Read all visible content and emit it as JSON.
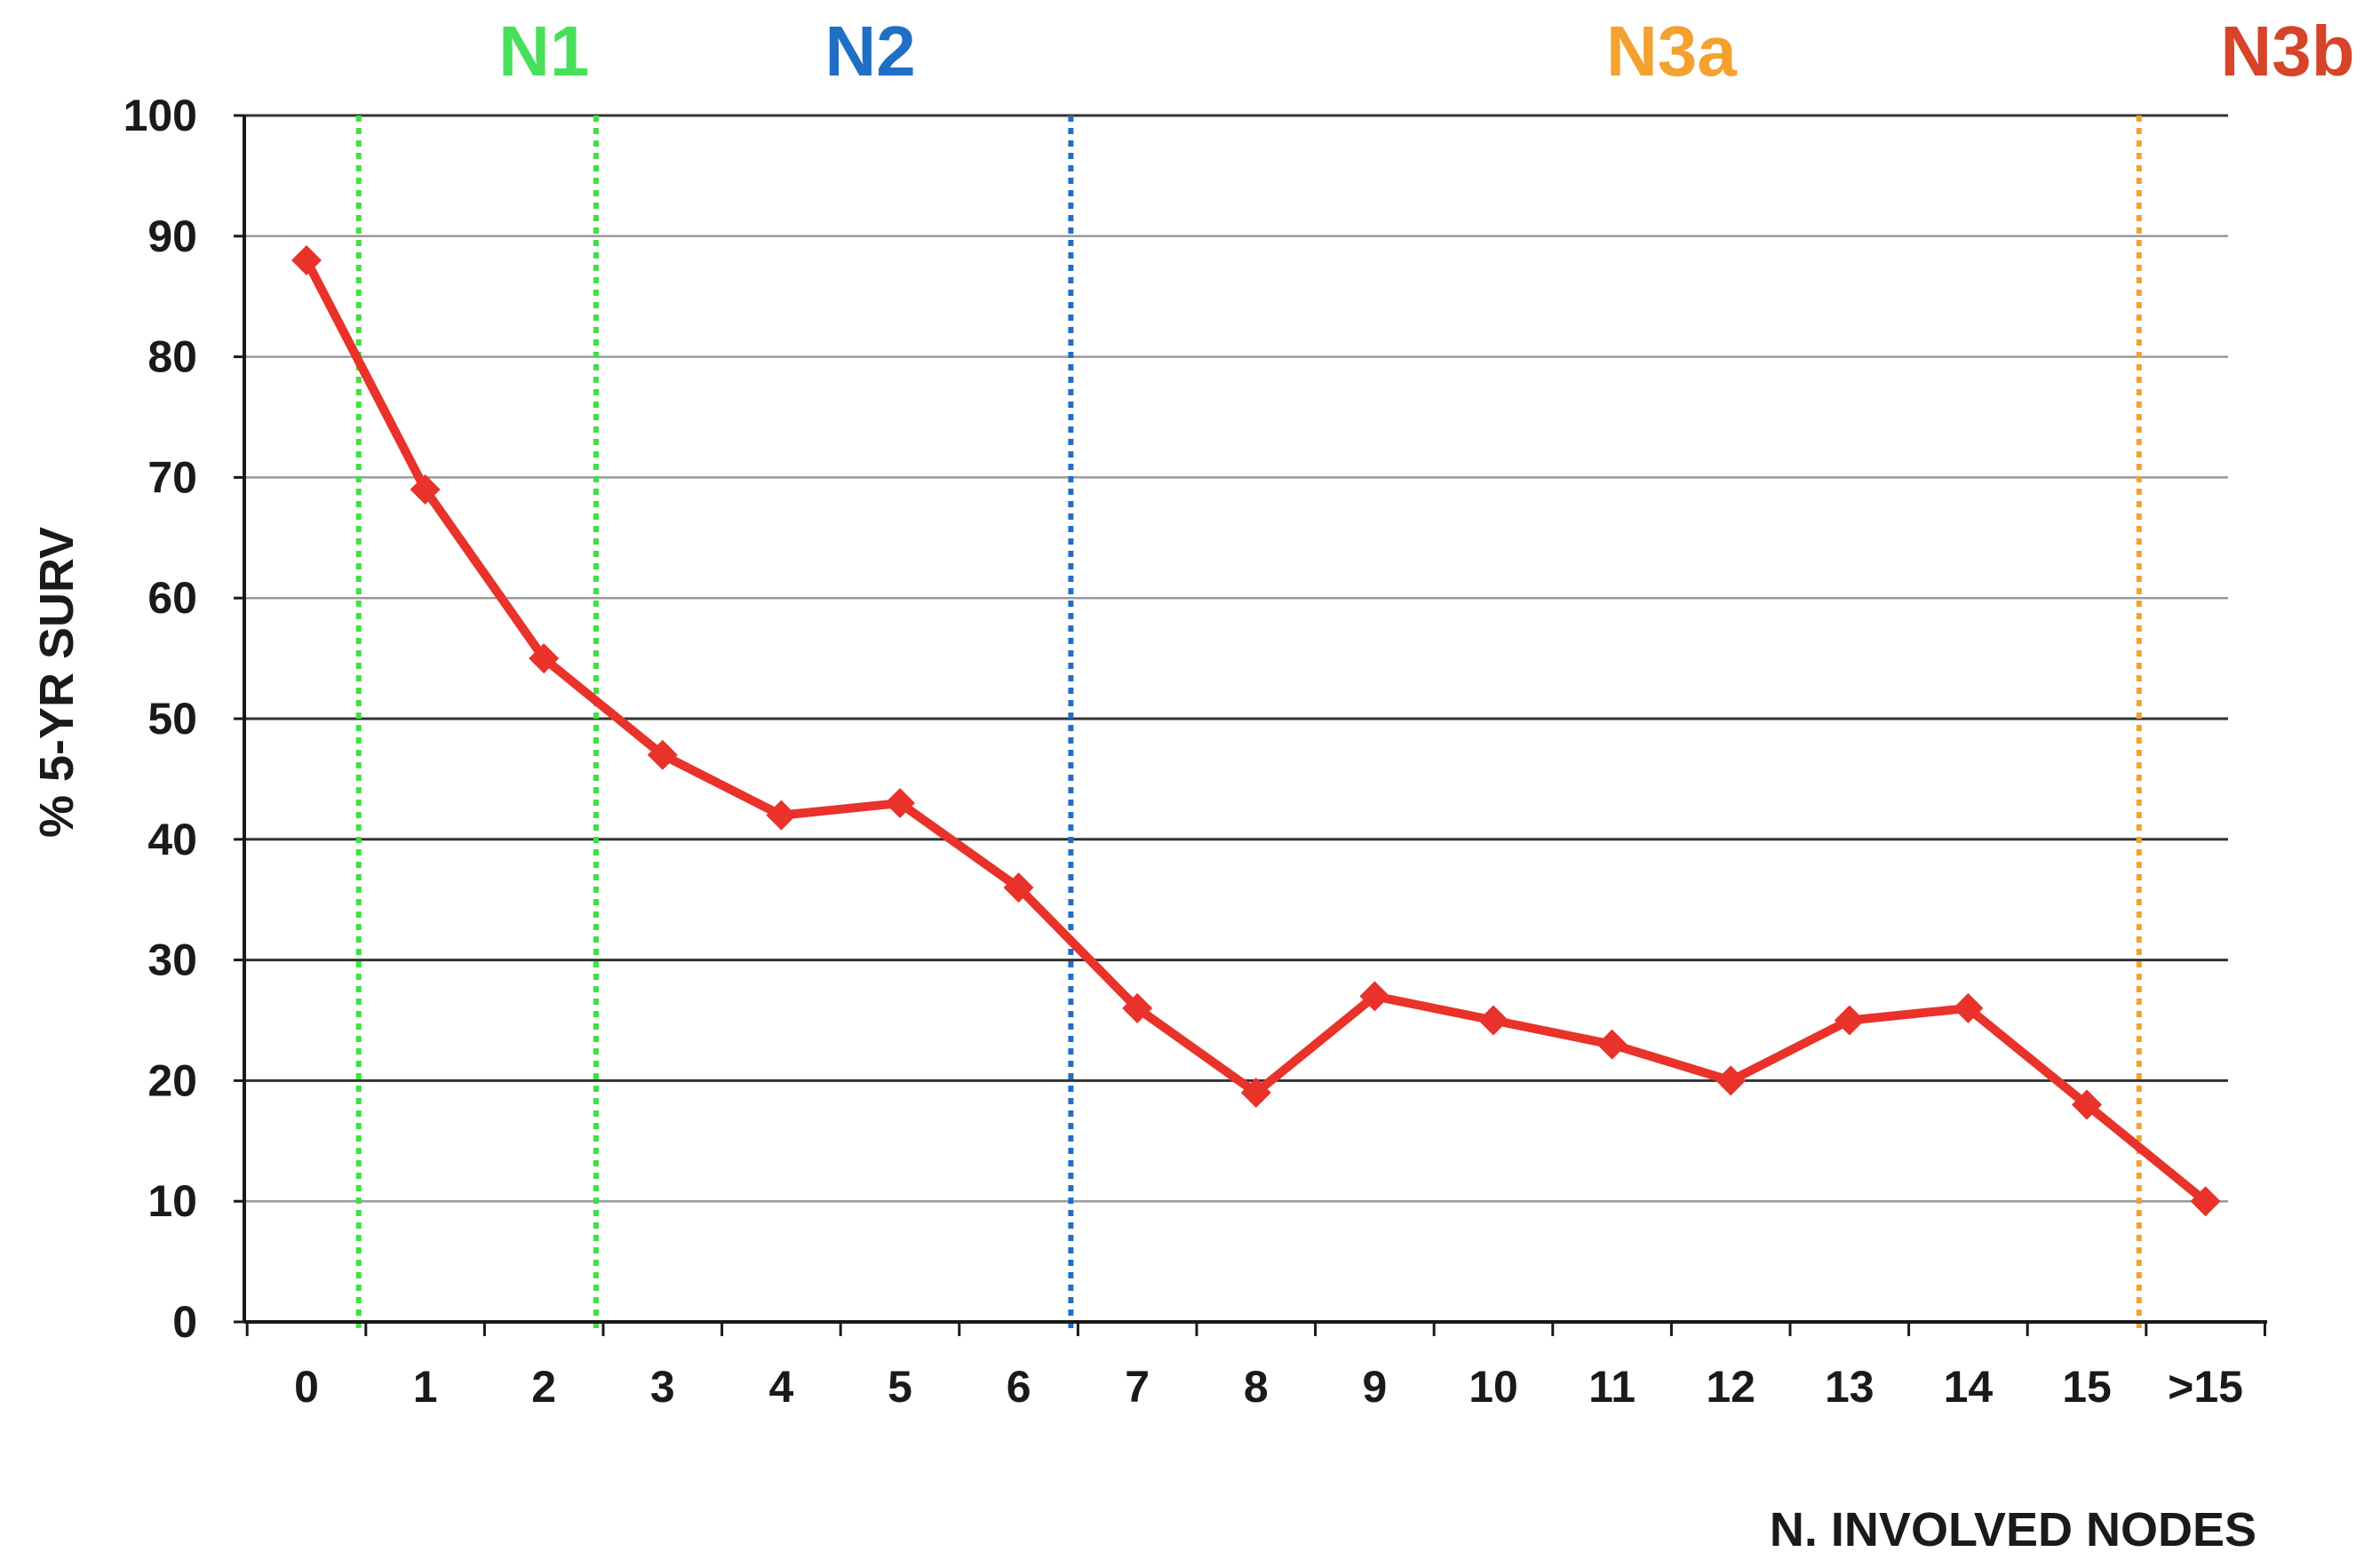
{
  "chart_data": {
    "type": "line",
    "title": "",
    "xlabel": "N. INVOLVED NODES",
    "ylabel": "% 5-YR SURV",
    "categories": [
      "0",
      "1",
      "2",
      "3",
      "4",
      "5",
      "6",
      "7",
      "8",
      "9",
      "10",
      "11",
      "12",
      "13",
      "14",
      "15",
      ">15"
    ],
    "series": [
      {
        "name": "",
        "color": "#e8322a",
        "marker": "diamond",
        "values": [
          88,
          69,
          55,
          47,
          42,
          43,
          36,
          26,
          19,
          27,
          25,
          23,
          20,
          25,
          26,
          18,
          10
        ]
      }
    ],
    "ylim": [
      0,
      100
    ],
    "yticks": [
      0,
      10,
      20,
      30,
      40,
      50,
      60,
      70,
      80,
      90,
      100
    ],
    "grid": true,
    "legend": "none",
    "stage_boundaries": [
      {
        "after_category": "0",
        "color": "#3fe03f",
        "style": "dotted"
      },
      {
        "after_category": "2",
        "color": "#3fe03f",
        "style": "dotted"
      },
      {
        "after_category": "6",
        "color": "#1f6fc4",
        "style": "dotted"
      },
      {
        "after_category": "15",
        "color": "#f4a12e",
        "style": "dotted"
      }
    ],
    "stage_labels": [
      {
        "text": "N1",
        "color": "#48e05a",
        "center_category": "2"
      },
      {
        "text": "N2",
        "color": "#1f6fc4",
        "center_category": "4.75"
      },
      {
        "text": "N3a",
        "color": "#f4a12e",
        "center_category": "11.5"
      },
      {
        "text": "N3b",
        "color": "#d6442a",
        "center_category": ">15"
      }
    ]
  }
}
